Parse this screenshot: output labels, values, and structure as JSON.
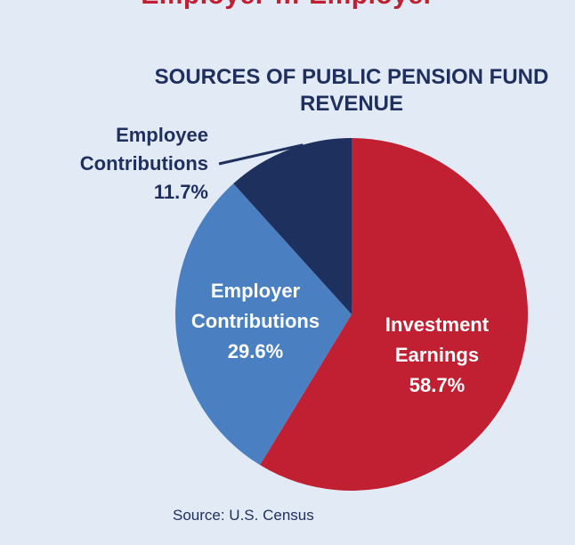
{
  "banner": {
    "text": "Employer … Employer"
  },
  "source": "Source: U.S. Census",
  "colors": {
    "background": "#e1eaf5",
    "investment": "#c11f32",
    "employer": "#4a80c1",
    "employee": "#1e305e",
    "text_dark": "#1f2f5e"
  },
  "chart_data": {
    "type": "pie",
    "title": "SOURCES OF PUBLIC PENSION FUND REVENUE",
    "slices": [
      {
        "label_lines": [
          "Investment",
          "Earnings"
        ],
        "value": 58.7,
        "value_label": "58.7%",
        "color": "#c11f32",
        "label_color": "#ffffff",
        "label_placement": "inside"
      },
      {
        "label_lines": [
          "Employer",
          "Contributions"
        ],
        "value": 29.6,
        "value_label": "29.6%",
        "color": "#4a80c1",
        "label_color": "#ffffff",
        "label_placement": "inside"
      },
      {
        "label_lines": [
          "Employee",
          "Contributions"
        ],
        "value": 11.7,
        "value_label": "11.7%",
        "color": "#1e305e",
        "label_color": "#1f2f5e",
        "label_placement": "outside-left"
      }
    ],
    "start": "12 o'clock",
    "direction": "clockwise"
  }
}
